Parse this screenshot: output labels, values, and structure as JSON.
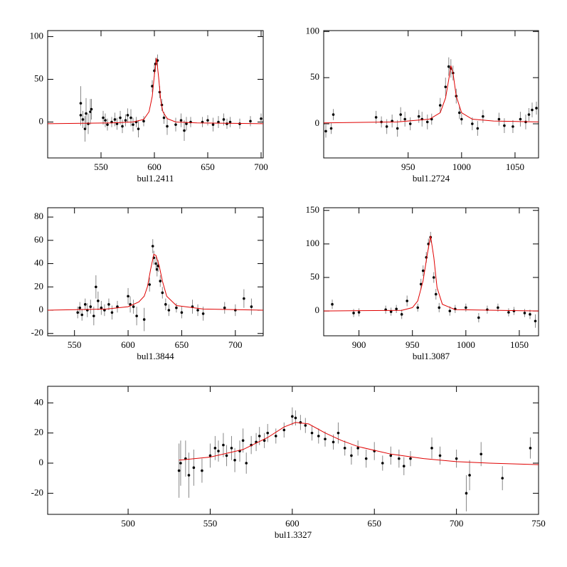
{
  "chart_data": [
    {
      "type": "scatter",
      "xlabel": "bul1.2411",
      "color": "#000000",
      "error_color": "#888888",
      "fit_color": "#e00000",
      "xlim": [
        500,
        702
      ],
      "ylim": [
        -42,
        107
      ],
      "xticks": [
        550,
        600,
        650,
        700
      ],
      "yticks": [
        0,
        50,
        100
      ],
      "x": [
        531,
        531,
        533,
        535,
        536,
        538,
        540,
        541,
        552,
        554,
        556,
        560,
        563,
        565,
        568,
        570,
        573,
        575,
        578,
        580,
        583,
        585,
        590,
        598,
        600,
        601,
        603,
        605,
        607,
        609,
        612,
        620,
        625,
        628,
        630,
        634,
        645,
        650,
        655,
        660,
        665,
        668,
        671,
        680,
        690,
        700
      ],
      "values": [
        22,
        8,
        3,
        -8,
        10,
        -2,
        12,
        15,
        5,
        2,
        -3,
        0,
        3,
        -2,
        5,
        -5,
        2,
        8,
        5,
        -3,
        0,
        -8,
        1,
        42,
        60,
        68,
        72,
        35,
        20,
        5,
        -5,
        -3,
        2,
        -10,
        -2,
        0,
        0,
        2,
        -3,
        0,
        3,
        -2,
        0,
        -2,
        1,
        4
      ],
      "errors": [
        20,
        12,
        10,
        15,
        18,
        12,
        15,
        12,
        8,
        8,
        7,
        6,
        8,
        7,
        8,
        8,
        7,
        8,
        10,
        8,
        6,
        10,
        6,
        7,
        7,
        7,
        7,
        7,
        7,
        7,
        10,
        8,
        8,
        12,
        8,
        6,
        6,
        6,
        8,
        7,
        7,
        6,
        6,
        6,
        6,
        6
      ],
      "fit": {
        "x": [
          500,
          560,
          580,
          590,
          595,
          598,
          600,
          602,
          604,
          606,
          608,
          612,
          620,
          640,
          702
        ],
        "values": [
          -2,
          -1,
          0,
          3,
          12,
          30,
          55,
          75,
          52,
          25,
          12,
          4,
          0,
          -1,
          -2
        ]
      }
    },
    {
      "type": "scatter",
      "xlabel": "bul1.2724",
      "color": "#000000",
      "error_color": "#888888",
      "fit_color": "#e00000",
      "xlim": [
        871,
        1072
      ],
      "ylim": [
        -37,
        101
      ],
      "xticks": [
        950,
        1000,
        1050
      ],
      "yticks": [
        0,
        50,
        100
      ],
      "x": [
        873,
        878,
        880,
        920,
        925,
        930,
        935,
        940,
        943,
        947,
        952,
        960,
        963,
        968,
        972,
        980,
        985,
        988,
        990,
        992,
        995,
        998,
        1000,
        1010,
        1015,
        1020,
        1035,
        1040,
        1048,
        1055,
        1060,
        1063,
        1066,
        1070
      ],
      "values": [
        -8,
        -5,
        10,
        7,
        2,
        -3,
        3,
        -5,
        10,
        5,
        0,
        8,
        5,
        2,
        5,
        20,
        40,
        62,
        60,
        55,
        30,
        12,
        5,
        0,
        -5,
        8,
        5,
        -2,
        -3,
        5,
        2,
        10,
        15,
        17
      ],
      "errors": [
        7,
        6,
        6,
        7,
        6,
        8,
        7,
        9,
        8,
        8,
        7,
        7,
        8,
        8,
        6,
        8,
        10,
        10,
        10,
        8,
        8,
        7,
        6,
        7,
        8,
        7,
        7,
        8,
        7,
        8,
        8,
        7,
        8,
        7
      ],
      "fit": {
        "x": [
          871,
          940,
          970,
          980,
          985,
          988,
          990,
          992,
          995,
          1000,
          1010,
          1030,
          1072
        ],
        "values": [
          1,
          2,
          5,
          12,
          28,
          48,
          63,
          55,
          30,
          12,
          5,
          3,
          2
        ]
      }
    },
    {
      "type": "scatter",
      "xlabel": "bul1.3844",
      "color": "#000000",
      "error_color": "#888888",
      "fit_color": "#e00000",
      "xlim": [
        525,
        726
      ],
      "ylim": [
        -22,
        88
      ],
      "xticks": [
        550,
        600,
        650,
        700
      ],
      "yticks": [
        -20,
        0,
        20,
        40,
        60,
        80
      ],
      "x": [
        553,
        555,
        557,
        560,
        562,
        565,
        568,
        570,
        572,
        575,
        578,
        582,
        585,
        590,
        600,
        602,
        605,
        608,
        615,
        620,
        623,
        624,
        626,
        627,
        628,
        630,
        632,
        635,
        638,
        645,
        650,
        660,
        665,
        670,
        690,
        700,
        708,
        715
      ],
      "values": [
        -2,
        2,
        -4,
        5,
        0,
        3,
        -5,
        20,
        8,
        2,
        0,
        5,
        -2,
        3,
        12,
        5,
        3,
        -5,
        -8,
        22,
        55,
        45,
        40,
        35,
        38,
        25,
        15,
        5,
        0,
        2,
        -2,
        3,
        0,
        -3,
        2,
        0,
        10,
        3
      ],
      "errors": [
        5,
        5,
        5,
        5,
        6,
        6,
        8,
        10,
        8,
        6,
        5,
        5,
        6,
        5,
        7,
        7,
        6,
        8,
        10,
        6,
        6,
        6,
        6,
        6,
        5,
        5,
        5,
        5,
        5,
        4,
        5,
        6,
        5,
        6,
        5,
        5,
        8,
        7
      ],
      "fit": {
        "x": [
          525,
          580,
          600,
          610,
          615,
          618,
          621,
          624,
          626,
          629,
          632,
          636,
          645,
          670,
          726
        ],
        "values": [
          0,
          1,
          3,
          7,
          12,
          20,
          35,
          48,
          47,
          38,
          25,
          12,
          4,
          1,
          0
        ]
      }
    },
    {
      "type": "scatter",
      "xlabel": "bul1.3087",
      "color": "#000000",
      "error_color": "#888888",
      "fit_color": "#e00000",
      "xlim": [
        867,
        1068
      ],
      "ylim": [
        -37,
        154
      ],
      "xticks": [
        900,
        950,
        1000,
        1050
      ],
      "yticks": [
        0,
        50,
        100,
        150
      ],
      "x": [
        875,
        895,
        900,
        925,
        930,
        935,
        940,
        945,
        955,
        958,
        960,
        963,
        965,
        967,
        970,
        972,
        975,
        985,
        990,
        1000,
        1012,
        1020,
        1030,
        1040,
        1045,
        1055,
        1060,
        1065
      ],
      "values": [
        10,
        -3,
        -2,
        2,
        -1,
        3,
        -5,
        15,
        5,
        40,
        60,
        80,
        100,
        110,
        50,
        25,
        5,
        0,
        3,
        5,
        -10,
        2,
        5,
        -2,
        0,
        -3,
        -5,
        -15
      ],
      "errors": [
        7,
        6,
        6,
        6,
        6,
        6,
        7,
        8,
        6,
        8,
        8,
        8,
        8,
        8,
        8,
        8,
        7,
        7,
        6,
        6,
        7,
        6,
        6,
        6,
        6,
        6,
        7,
        10
      ],
      "fit": {
        "x": [
          867,
          940,
          950,
          955,
          960,
          964,
          967,
          970,
          973,
          978,
          990,
          1068
        ],
        "values": [
          0,
          1,
          5,
          15,
          45,
          85,
          112,
          80,
          35,
          10,
          2,
          0
        ]
      }
    },
    {
      "type": "scatter",
      "xlabel": "bul1.3327",
      "color": "#000000",
      "error_color": "#888888",
      "fit_color": "#e00000",
      "xlim": [
        451,
        750
      ],
      "ylim": [
        -34,
        51
      ],
      "xticks": [
        500,
        550,
        600,
        650,
        700,
        750
      ],
      "yticks": [
        -20,
        0,
        20,
        40
      ],
      "x": [
        531,
        532,
        535,
        537,
        540,
        545,
        550,
        553,
        555,
        558,
        560,
        563,
        565,
        568,
        570,
        572,
        575,
        578,
        580,
        583,
        585,
        590,
        595,
        600,
        602,
        605,
        608,
        612,
        616,
        620,
        625,
        628,
        632,
        636,
        640,
        645,
        650,
        655,
        660,
        665,
        668,
        672,
        685,
        690,
        700,
        706,
        708,
        715,
        728,
        745
      ],
      "values": [
        -5,
        0,
        3,
        -8,
        -3,
        -5,
        5,
        10,
        8,
        12,
        5,
        10,
        2,
        8,
        15,
        0,
        12,
        14,
        18,
        15,
        20,
        18,
        22,
        31,
        30,
        27,
        25,
        20,
        18,
        16,
        14,
        20,
        10,
        5,
        10,
        3,
        8,
        0,
        5,
        3,
        -2,
        3,
        10,
        5,
        3,
        -20,
        -8,
        6,
        -10,
        10
      ],
      "errors": [
        18,
        15,
        12,
        15,
        12,
        8,
        8,
        8,
        7,
        8,
        7,
        8,
        8,
        7,
        8,
        7,
        6,
        6,
        6,
        5,
        6,
        5,
        5,
        6,
        5,
        5,
        5,
        5,
        5,
        5,
        5,
        7,
        5,
        6,
        5,
        6,
        6,
        5,
        6,
        6,
        6,
        5,
        7,
        6,
        6,
        12,
        10,
        8,
        8,
        7
      ],
      "fit": {
        "x": [
          531,
          550,
          570,
          585,
          595,
          602,
          610,
          620,
          630,
          640,
          660,
          680,
          700,
          720,
          750
        ],
        "values": [
          2,
          4,
          9,
          17,
          24,
          27,
          26,
          20,
          15,
          11,
          6,
          3,
          1,
          0,
          -1
        ]
      }
    }
  ]
}
